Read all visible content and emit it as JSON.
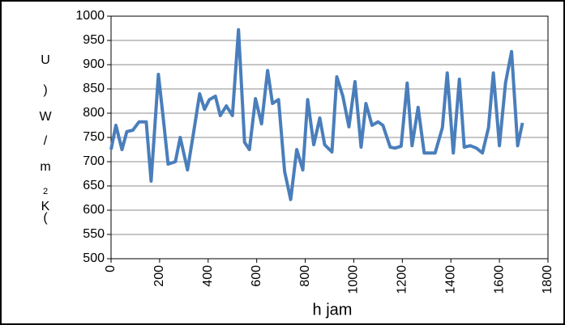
{
  "chart_data": {
    "type": "line",
    "ylabel": [
      "U",
      ")",
      "W",
      "/",
      "m",
      "2",
      "K",
      "("
    ],
    "xlabel": "h jam",
    "x": [
      0,
      20,
      45,
      65,
      90,
      115,
      145,
      165,
      195,
      215,
      235,
      265,
      285,
      315,
      340,
      365,
      385,
      405,
      430,
      450,
      475,
      500,
      525,
      550,
      570,
      595,
      620,
      645,
      665,
      690,
      715,
      740,
      765,
      790,
      810,
      835,
      860,
      880,
      910,
      930,
      955,
      980,
      1005,
      1030,
      1050,
      1075,
      1100,
      1120,
      1150,
      1170,
      1195,
      1220,
      1240,
      1265,
      1290,
      1315,
      1335,
      1365,
      1385,
      1410,
      1435,
      1455,
      1480,
      1505,
      1530,
      1555,
      1575,
      1600,
      1625,
      1650,
      1675,
      1695
    ],
    "series": [
      {
        "color": "#4a7ebb",
        "values": [
          725,
          775,
          725,
          762,
          765,
          782,
          782,
          660,
          880,
          790,
          695,
          700,
          750,
          683,
          760,
          840,
          808,
          828,
          835,
          795,
          815,
          795,
          972,
          740,
          725,
          830,
          778,
          888,
          820,
          828,
          680,
          622,
          725,
          683,
          828,
          735,
          790,
          735,
          720,
          875,
          835,
          772,
          865,
          730,
          820,
          775,
          782,
          775,
          730,
          728,
          732,
          862,
          733,
          812,
          718,
          718,
          718,
          770,
          883,
          718,
          870,
          730,
          733,
          728,
          718,
          770,
          883,
          733,
          862,
          927,
          733,
          780
        ]
      }
    ],
    "xlim": [
      0,
      1800
    ],
    "xticks": [
      0,
      200,
      400,
      600,
      800,
      1000,
      1200,
      1400,
      1600,
      1800
    ],
    "ylim": [
      500,
      1000
    ],
    "yticks": [
      500,
      550,
      600,
      650,
      700,
      750,
      800,
      850,
      900,
      950,
      1000
    ],
    "grid": true
  }
}
